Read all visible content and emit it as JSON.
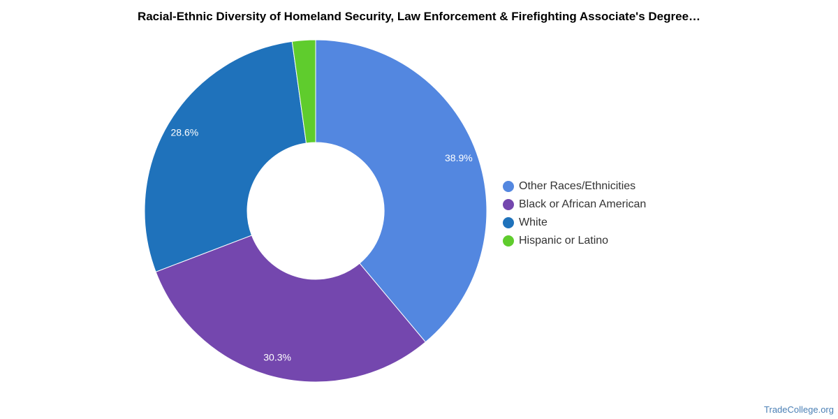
{
  "chart_data": {
    "type": "pie",
    "title": "Racial-Ethnic Diversity of Homeland Security, Law Enforcement & Firefighting Associate's Degree…",
    "donut": true,
    "start_angle_deg": 0,
    "direction": "clockwise",
    "slices": [
      {
        "label": "Other Races/Ethnicities",
        "value": 38.9,
        "value_label": "38.9%",
        "color": "#5387e0"
      },
      {
        "label": "Black or African American",
        "value": 30.3,
        "value_label": "30.3%",
        "color": "#7447ae"
      },
      {
        "label": "White",
        "value": 28.6,
        "value_label": "28.6%",
        "color": "#1f72bb"
      },
      {
        "label": "Hispanic or Latino",
        "value": 2.2,
        "value_label": "",
        "color": "#5fcc2d"
      }
    ],
    "legend_position": "right"
  },
  "watermark": "TradeCollege.org"
}
